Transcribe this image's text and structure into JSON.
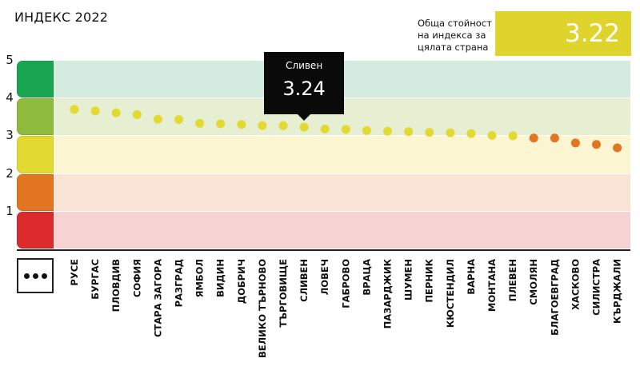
{
  "title": "ИНДЕКС 2022",
  "overall": {
    "label": "Обща стойност на индекса за цялата страна",
    "value": "3.22",
    "color": "#dfd42b"
  },
  "more_button_icon": "more-dots-icon",
  "tooltip": {
    "name": "Сливен",
    "value": "3.24"
  },
  "bands": [
    {
      "from": 4,
      "to": 5,
      "color": "#d3ecdf",
      "swatch": "#19a552"
    },
    {
      "from": 3,
      "to": 4,
      "color": "#e6efd2",
      "swatch": "#8fbb3c"
    },
    {
      "from": 2,
      "to": 3,
      "color": "#fbf5d2",
      "swatch": "#e2d931"
    },
    {
      "from": 1,
      "to": 2,
      "color": "#f8e3d4",
      "swatch": "#e17522"
    },
    {
      "from": 0,
      "to": 1,
      "color": "#f6d2d3",
      "swatch": "#db2b2c"
    }
  ],
  "chart_data": {
    "type": "scatter",
    "title": "ИНДЕКС 2022",
    "ylim": [
      0,
      5
    ],
    "y_ticks": [
      "5",
      "4",
      "3",
      "2",
      "1"
    ],
    "categories": [
      "РУСЕ",
      "БУРГАС",
      "ПЛОВДИВ",
      "СОФИЯ",
      "СТАРА ЗАГОРА",
      "РАЗГРАД",
      "ЯМБОЛ",
      "ВИДИН",
      "ДОБРИЧ",
      "ВЕЛИКО ТЪРНОВО",
      "ТЪРГОВИЩЕ",
      "СЛИВЕН",
      "ЛОВЕЧ",
      "ГАБРОВО",
      "ВРАЦА",
      "ПАЗАРДЖИК",
      "ШУМЕН",
      "ПЕРНИК",
      "КЮСТЕНДИЛ",
      "ВАРНА",
      "МОНТАНА",
      "ПЛЕВЕН",
      "СМОЛЯН",
      "БЛАГОЕВГРАД",
      "ХАСКОВО",
      "СИЛИСТРА",
      "КЪРДЖАЛИ"
    ],
    "values": [
      3.71,
      3.67,
      3.62,
      3.57,
      3.45,
      3.44,
      3.34,
      3.33,
      3.31,
      3.28,
      3.28,
      3.24,
      3.19,
      3.18,
      3.15,
      3.13,
      3.12,
      3.1,
      3.09,
      3.07,
      3.02,
      3.01,
      2.95,
      2.95,
      2.82,
      2.78,
      2.69
    ],
    "point_colors": [
      "#e2d931",
      "#e2d931",
      "#e2d931",
      "#e2d931",
      "#e2d931",
      "#e2d931",
      "#e2d931",
      "#e2d931",
      "#e2d931",
      "#e2d931",
      "#e2d931",
      "#e2d931",
      "#e2d931",
      "#e2d931",
      "#e2d931",
      "#e2d931",
      "#e2d931",
      "#e2d931",
      "#e2d931",
      "#e2d931",
      "#e2d931",
      "#e2d931",
      "#e17522",
      "#e17522",
      "#e17522",
      "#e17522",
      "#e17522"
    ],
    "highlight": "СЛИВЕН",
    "grid": false
  }
}
